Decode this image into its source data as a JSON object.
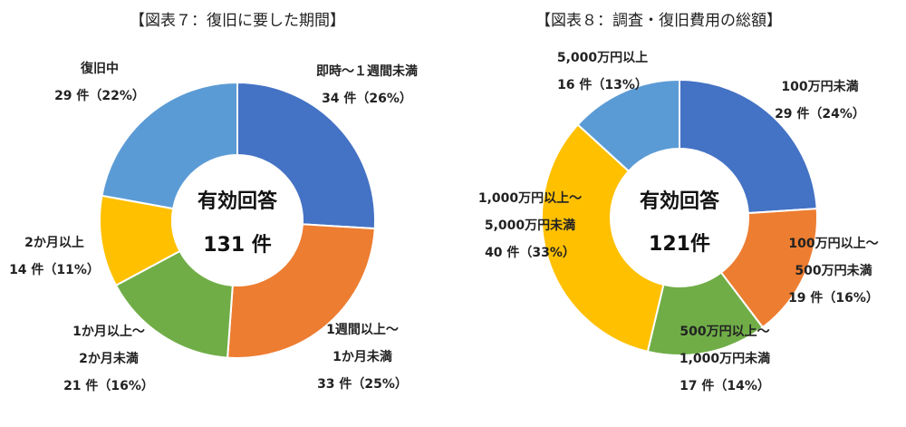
{
  "chart_data": [
    {
      "type": "pie",
      "title": "【図表７：復旧に要した期間】",
      "center_label": [
        "有効回答",
        "131 件"
      ],
      "slices": [
        {
          "label": [
            "即時～１週間未満"
          ],
          "value": 34,
          "text": "34 件（26%）",
          "color": "#4472C4"
        },
        {
          "label": [
            "1週間以上～",
            "1か月未満"
          ],
          "value": 33,
          "text": "33 件（25%）",
          "color": "#ED7D31"
        },
        {
          "label": [
            "1か月以上～",
            "2か月未満"
          ],
          "value": 21,
          "text": "21 件（16%）",
          "color": "#70AD47"
        },
        {
          "label": [
            "2か月以上"
          ],
          "value": 14,
          "text": "14 件（11%）",
          "color": "#FFC000"
        },
        {
          "label": [
            "復旧中"
          ],
          "value": 29,
          "text": "29 件（22%）",
          "color": "#5B9BD5"
        }
      ]
    },
    {
      "type": "pie",
      "title": "【図表８：調査・復旧費用の総額】",
      "center_label": [
        "有効回答",
        "121件"
      ],
      "slices": [
        {
          "label": [
            "100万円未満"
          ],
          "value": 29,
          "text": "29 件（24%）",
          "color": "#4472C4"
        },
        {
          "label": [
            "100万円以上～",
            "500万円未満"
          ],
          "value": 19,
          "text": "19 件（16%）",
          "color": "#ED7D31"
        },
        {
          "label": [
            "500万円以上～",
            "1,000万円未満"
          ],
          "value": 17,
          "text": "17 件（14%）",
          "color": "#70AD47"
        },
        {
          "label": [
            "1,000万円以上～",
            "5,000万円未満"
          ],
          "value": 40,
          "text": "40 件（33%）",
          "color": "#FFC000"
        },
        {
          "label": [
            "5,000万円以上"
          ],
          "value": 16,
          "text": "16 件（13%）",
          "color": "#5B9BD5"
        }
      ]
    }
  ]
}
